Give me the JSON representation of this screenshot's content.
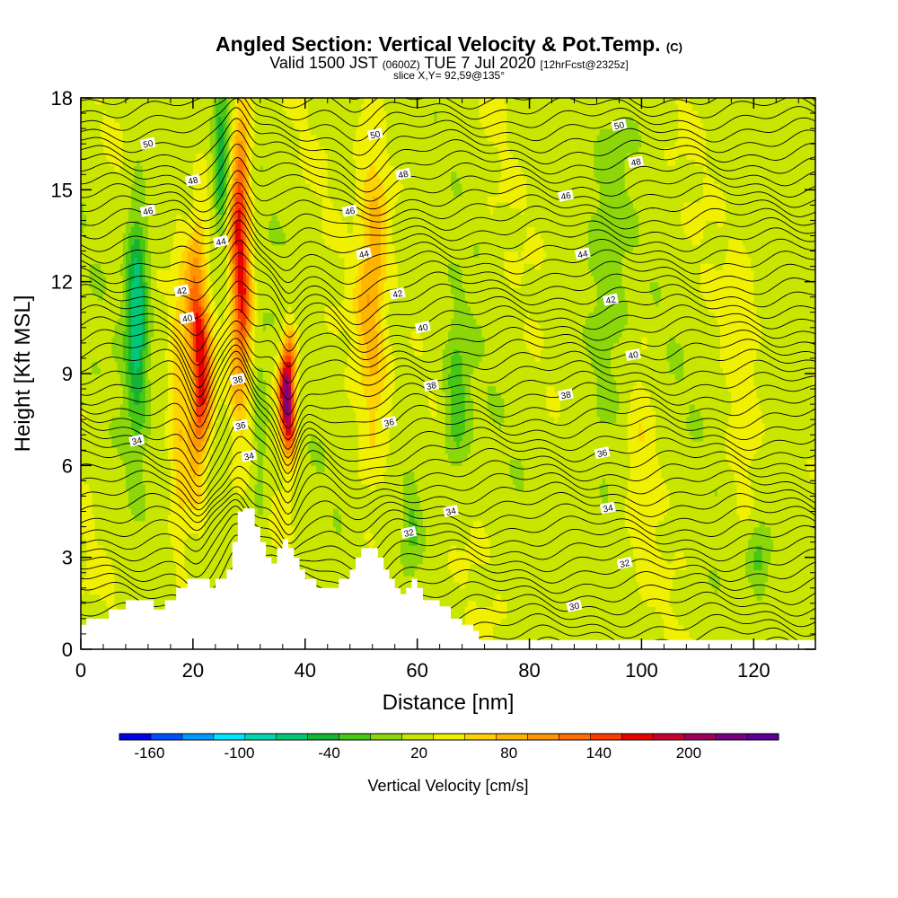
{
  "titles": {
    "main": "Angled Section: Vertical Velocity & Pot.Temp.",
    "main_unit": "(C)",
    "valid_a": "Valid 1500 JST",
    "valid_b": "(0600Z)",
    "valid_c": "TUE 7 Jul 2020",
    "valid_d": "[12hrFcst@2325z]",
    "slice": "slice X,Y= 92,59@135°"
  },
  "chart_data": {
    "type": "heatmap",
    "xlabel": "Distance [nm]",
    "ylabel": "Height [Kft MSL]",
    "xlim": [
      0,
      131
    ],
    "ylim": [
      0,
      18
    ],
    "x_ticks": [
      "0",
      "20",
      "40",
      "60",
      "80",
      "100",
      "120"
    ],
    "y_ticks": [
      "0",
      "3",
      "6",
      "9",
      "12",
      "15",
      "18"
    ],
    "colorbar": {
      "label": "Vertical Velocity [cm/s]",
      "tick_labels": [
        "-160",
        "-100",
        "-40",
        "20",
        "80",
        "140",
        "200"
      ],
      "tick_values": [
        -160,
        -100,
        -40,
        20,
        80,
        140,
        200
      ],
      "min": -180,
      "max": 260,
      "step": 20,
      "colors": [
        "#0000e6",
        "#0050ff",
        "#009bff",
        "#00e5ff",
        "#00d6b4",
        "#00c878",
        "#15b432",
        "#46c814",
        "#8cd70a",
        "#c8e600",
        "#f0f000",
        "#ffd200",
        "#ffb400",
        "#ff9600",
        "#ff6e00",
        "#ff3c00",
        "#e60000",
        "#c80032",
        "#a0005a",
        "#780082",
        "#5a0096"
      ]
    },
    "updraft_cores": [
      {
        "x": 21,
        "height": 9.5,
        "velocity": 160
      },
      {
        "x": 28,
        "height": 12,
        "velocity": 150
      },
      {
        "x": 37,
        "height": 8.5,
        "velocity": 220
      },
      {
        "x": 52,
        "height": 12,
        "velocity": 70
      }
    ],
    "downdraft_zones": [
      {
        "x": 10,
        "height": 11,
        "velocity": -90
      },
      {
        "x": 25,
        "height": 16,
        "velocity": -60
      },
      {
        "x": 67,
        "height": 8,
        "velocity": -40
      }
    ],
    "theta_contour_labels": [
      {
        "text": "50",
        "x": 12,
        "y": 16.5
      },
      {
        "text": "48",
        "x": 20,
        "y": 15.3
      },
      {
        "text": "46",
        "x": 12,
        "y": 14.3
      },
      {
        "text": "44",
        "x": 25,
        "y": 13.3
      },
      {
        "text": "42",
        "x": 18,
        "y": 11.7
      },
      {
        "text": "40",
        "x": 19,
        "y": 10.8
      },
      {
        "text": "38",
        "x": 28,
        "y": 8.8
      },
      {
        "text": "36",
        "x": 28.5,
        "y": 7.3
      },
      {
        "text": "34",
        "x": 30,
        "y": 6.3
      },
      {
        "text": "34",
        "x": 10,
        "y": 6.8
      },
      {
        "text": "50",
        "x": 52.5,
        "y": 16.8
      },
      {
        "text": "48",
        "x": 57.5,
        "y": 15.5
      },
      {
        "text": "46",
        "x": 48,
        "y": 14.3
      },
      {
        "text": "44",
        "x": 50.5,
        "y": 12.9
      },
      {
        "text": "42",
        "x": 56.5,
        "y": 11.6
      },
      {
        "text": "40",
        "x": 61,
        "y": 10.5
      },
      {
        "text": "38",
        "x": 62.5,
        "y": 8.6
      },
      {
        "text": "36",
        "x": 55,
        "y": 7.4
      },
      {
        "text": "34",
        "x": 66,
        "y": 4.5
      },
      {
        "text": "32",
        "x": 58.5,
        "y": 3.8
      },
      {
        "text": "50",
        "x": 96,
        "y": 17.1
      },
      {
        "text": "48",
        "x": 99,
        "y": 15.9
      },
      {
        "text": "46",
        "x": 86.5,
        "y": 14.8
      },
      {
        "text": "44",
        "x": 89.5,
        "y": 12.9
      },
      {
        "text": "42",
        "x": 94.5,
        "y": 11.4
      },
      {
        "text": "40",
        "x": 98.5,
        "y": 9.6
      },
      {
        "text": "38",
        "x": 86.5,
        "y": 8.3
      },
      {
        "text": "36",
        "x": 93,
        "y": 6.4
      },
      {
        "text": "34",
        "x": 94,
        "y": 4.6
      },
      {
        "text": "32",
        "x": 97,
        "y": 2.8
      },
      {
        "text": "30",
        "x": 88,
        "y": 1.4
      }
    ],
    "terrain_profile": [
      [
        0,
        0.8
      ],
      [
        1,
        1.0
      ],
      [
        5,
        1.3
      ],
      [
        8,
        1.6
      ],
      [
        13,
        1.3
      ],
      [
        15,
        1.6
      ],
      [
        17,
        2.0
      ],
      [
        19,
        2.3
      ],
      [
        22,
        2.3
      ],
      [
        23,
        2.0
      ],
      [
        24,
        2.3
      ],
      [
        26,
        2.6
      ],
      [
        27,
        3.5
      ],
      [
        28,
        4.5
      ],
      [
        29,
        4.6
      ],
      [
        31,
        4.0
      ],
      [
        32,
        3.5
      ],
      [
        33,
        3.0
      ],
      [
        34,
        2.8
      ],
      [
        35,
        3.3
      ],
      [
        36,
        3.6
      ],
      [
        37,
        3.3
      ],
      [
        38,
        3.0
      ],
      [
        39,
        2.6
      ],
      [
        40,
        2.3
      ],
      [
        42,
        2.0
      ],
      [
        44,
        2.0
      ],
      [
        46,
        2.3
      ],
      [
        48,
        2.6
      ],
      [
        49,
        3.0
      ],
      [
        50,
        3.3
      ],
      [
        52,
        3.3
      ],
      [
        53,
        3.0
      ],
      [
        54,
        2.6
      ],
      [
        55,
        2.3
      ],
      [
        56,
        2.0
      ],
      [
        57,
        1.8
      ],
      [
        58,
        2.0
      ],
      [
        59,
        2.3
      ],
      [
        60,
        2.0
      ],
      [
        61,
        1.6
      ],
      [
        64,
        1.4
      ],
      [
        66,
        1.0
      ],
      [
        68,
        0.8
      ],
      [
        70,
        0.6
      ],
      [
        71,
        0.3
      ],
      [
        131,
        0.3
      ]
    ]
  }
}
